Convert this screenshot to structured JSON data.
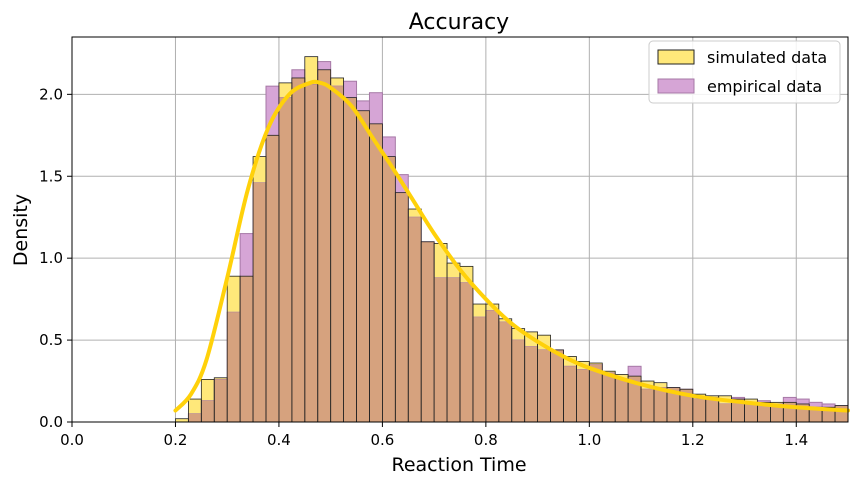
{
  "chart_data": {
    "type": "histogram",
    "title": "Accuracy",
    "xlabel": "Reaction Time",
    "ylabel": "Density",
    "xlim": [
      0.0,
      1.5
    ],
    "ylim": [
      0.0,
      2.35
    ],
    "x_ticks": [
      "0.0",
      "0.2",
      "0.4",
      "0.6",
      "0.8",
      "1.0",
      "1.2",
      "1.4"
    ],
    "y_ticks": [
      "0.0",
      "0.5",
      "1.0",
      "1.5",
      "2.0"
    ],
    "grid": true,
    "legend_position": "top-right",
    "legend": [
      "simulated data",
      "empirical data"
    ],
    "colors": {
      "simulated_fill": "#ffe87a",
      "simulated_edge": "#222222",
      "empirical_fill": "#d6a5d6",
      "empirical_edge": "#a678a6",
      "overlap_fill": "#d6a27e",
      "curve": "#ffd10a"
    },
    "series": [
      {
        "name": "simulated data",
        "kind": "histogram",
        "bin_edges": [
          0.2,
          0.225,
          0.25,
          0.275,
          0.3,
          0.325,
          0.35,
          0.375,
          0.4,
          0.425,
          0.45,
          0.475,
          0.5,
          0.525,
          0.55,
          0.575,
          0.6,
          0.625,
          0.65,
          0.675,
          0.7,
          0.725,
          0.75,
          0.775,
          0.8,
          0.825,
          0.85,
          0.875,
          0.9,
          0.925,
          0.95,
          0.975,
          1.0,
          1.025,
          1.05,
          1.075,
          1.1,
          1.125,
          1.15,
          1.175,
          1.2,
          1.225,
          1.25,
          1.275,
          1.3,
          1.325,
          1.35,
          1.375,
          1.4,
          1.425,
          1.45,
          1.475,
          1.5
        ],
        "values": [
          0.02,
          0.14,
          0.26,
          0.27,
          0.89,
          0.89,
          1.62,
          1.75,
          2.07,
          2.1,
          2.23,
          2.15,
          2.1,
          1.98,
          1.9,
          1.82,
          1.62,
          1.4,
          1.3,
          1.1,
          1.09,
          0.97,
          0.95,
          0.72,
          0.72,
          0.63,
          0.57,
          0.55,
          0.53,
          0.44,
          0.4,
          0.37,
          0.36,
          0.31,
          0.29,
          0.28,
          0.25,
          0.24,
          0.21,
          0.2,
          0.17,
          0.16,
          0.16,
          0.14,
          0.14,
          0.12,
          0.12,
          0.12,
          0.11,
          0.09,
          0.09,
          0.1
        ]
      },
      {
        "name": "empirical data",
        "kind": "histogram",
        "bin_edges": [
          0.2,
          0.225,
          0.25,
          0.275,
          0.3,
          0.325,
          0.35,
          0.375,
          0.4,
          0.425,
          0.45,
          0.475,
          0.5,
          0.525,
          0.55,
          0.575,
          0.6,
          0.625,
          0.65,
          0.675,
          0.7,
          0.725,
          0.75,
          0.775,
          0.8,
          0.825,
          0.85,
          0.875,
          0.9,
          0.925,
          0.95,
          0.975,
          1.0,
          1.025,
          1.05,
          1.075,
          1.1,
          1.125,
          1.15,
          1.175,
          1.2,
          1.225,
          1.25,
          1.275,
          1.3,
          1.325,
          1.35,
          1.375,
          1.4,
          1.425,
          1.45,
          1.475,
          1.5
        ],
        "values": [
          0.0,
          0.05,
          0.13,
          0.26,
          0.67,
          1.15,
          1.46,
          2.05,
          1.98,
          2.15,
          2.06,
          2.2,
          2.05,
          2.08,
          1.96,
          2.01,
          1.74,
          1.51,
          1.25,
          1.1,
          0.88,
          0.88,
          0.85,
          0.64,
          0.68,
          0.61,
          0.5,
          0.46,
          0.44,
          0.44,
          0.34,
          0.32,
          0.35,
          0.3,
          0.26,
          0.34,
          0.2,
          0.21,
          0.21,
          0.2,
          0.14,
          0.15,
          0.11,
          0.15,
          0.11,
          0.13,
          0.11,
          0.15,
          0.14,
          0.12,
          0.11,
          0.1
        ]
      },
      {
        "name": "",
        "kind": "line",
        "x": [
          0.2,
          0.23,
          0.26,
          0.3,
          0.34,
          0.38,
          0.42,
          0.46,
          0.48,
          0.5,
          0.54,
          0.58,
          0.62,
          0.66,
          0.7,
          0.75,
          0.8,
          0.85,
          0.9,
          0.95,
          1.0,
          1.1,
          1.2,
          1.3,
          1.4,
          1.5
        ],
        "y": [
          0.07,
          0.17,
          0.38,
          0.88,
          1.42,
          1.8,
          2.0,
          2.07,
          2.07,
          2.04,
          1.93,
          1.74,
          1.55,
          1.35,
          1.15,
          0.93,
          0.75,
          0.6,
          0.49,
          0.4,
          0.33,
          0.23,
          0.16,
          0.12,
          0.09,
          0.07
        ]
      }
    ]
  }
}
